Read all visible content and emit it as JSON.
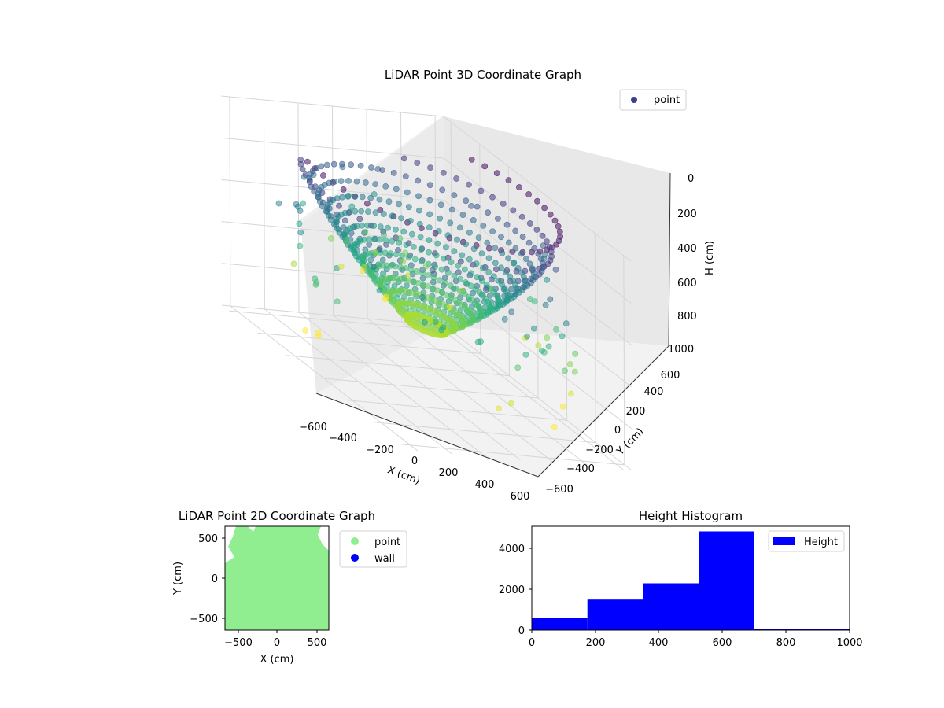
{
  "chart_data": [
    {
      "type": "scatter",
      "projection": "3d",
      "title": "LiDAR Point 3D Coordinate Graph",
      "xlabel": "X (cm)",
      "ylabel": "Y (cm)",
      "zlabel": "H (cm)",
      "xlim": [
        -650,
        650
      ],
      "ylim": [
        -650,
        650
      ],
      "zlim": [
        1000,
        0
      ],
      "xticks": [
        "−600",
        "−400",
        "−200",
        "0",
        "200",
        "400",
        "600"
      ],
      "yticks": [
        "−600",
        "−400",
        "−200",
        "0",
        "200",
        "400",
        "600"
      ],
      "zticks": [
        "0",
        "200",
        "400",
        "600",
        "800",
        "1000"
      ],
      "legend": [
        "point"
      ],
      "legend_position": "upper-right",
      "colormap": "viridis",
      "color_by": "H (cm)",
      "grid": true,
      "series": [
        {
          "label": "point",
          "shape": "bowl",
          "rim_height": 30,
          "bottom_height": 700,
          "radius": 600,
          "ring_count": 14,
          "points_per_ring": 60,
          "outlier_height_range": [
            200,
            850
          ]
        }
      ]
    },
    {
      "type": "scatter",
      "title": "LiDAR Point 2D Coordinate Graph",
      "xlabel": "X (cm)",
      "ylabel": "Y (cm)",
      "xlim": [
        -650,
        650
      ],
      "ylim": [
        -650,
        650
      ],
      "xticks": [
        "−500",
        "0",
        "500"
      ],
      "yticks": [
        "500",
        "0",
        "−500"
      ],
      "legend": [
        "point",
        "wall"
      ],
      "legend_position": "outside-right",
      "colors": {
        "point": "#90ee90",
        "wall": "#0000ff"
      },
      "grid": false
    },
    {
      "type": "bar",
      "subtype": "histogram",
      "title": "Height Histogram",
      "bins": [
        [
          0,
          175
        ],
        [
          175,
          350
        ],
        [
          350,
          525
        ],
        [
          525,
          700
        ],
        [
          700,
          875
        ],
        [
          875,
          1000
        ]
      ],
      "values": [
        600,
        1500,
        2300,
        4850,
        60,
        40
      ],
      "xlim": [
        0,
        1000
      ],
      "ylim": [
        0,
        5100
      ],
      "xticks": [
        "0",
        "200",
        "400",
        "600",
        "800",
        "1000"
      ],
      "yticks": [
        "0",
        "2000",
        "4000"
      ],
      "legend": [
        "Height"
      ],
      "legend_position": "upper-right",
      "color": "#0000ff",
      "grid": false
    }
  ]
}
